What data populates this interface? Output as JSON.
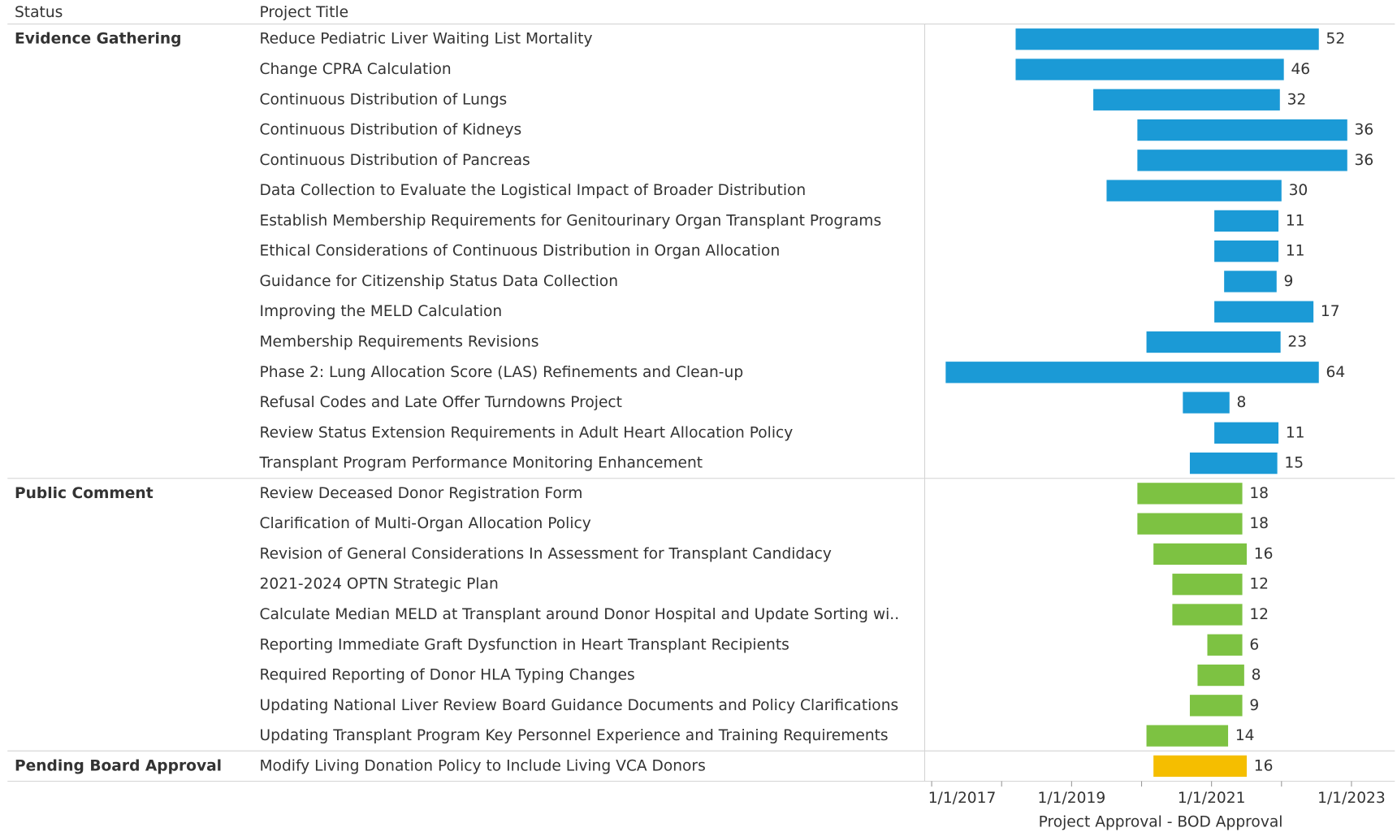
{
  "chart_data": {
    "type": "gantt",
    "columns": [
      "Status",
      "Project Title"
    ],
    "x_label": "Project Approval - BOD Approval",
    "xlim": [
      2016.9,
      2023.62
    ],
    "xticks": [
      {
        "value": 2017,
        "label": "1/1/2017"
      },
      {
        "value": 2019,
        "label": "1/1/2019"
      },
      {
        "value": 2021,
        "label": "1/1/2021"
      },
      {
        "value": 2023,
        "label": "1/1/2023"
      }
    ],
    "minor_xticks": [
      2018,
      2020,
      2022
    ],
    "groups": [
      {
        "name": "Evidence Gathering",
        "color": "#1b9ad6",
        "rows": [
          {
            "title": "Reduce Pediatric Liver Waiting List Mortality",
            "start": 2018.2,
            "value": 52
          },
          {
            "title": "Change CPRA Calculation",
            "start": 2018.2,
            "value": 46
          },
          {
            "title": "Continuous Distribution of Lungs",
            "start": 2019.31,
            "value": 32
          },
          {
            "title": "Continuous Distribution of Kidneys",
            "start": 2019.94,
            "value": 36
          },
          {
            "title": "Continuous Distribution of Pancreas",
            "start": 2019.94,
            "value": 36
          },
          {
            "title": "Data Collection to Evaluate the Logistical Impact of Broader Distribution",
            "start": 2019.5,
            "value": 30
          },
          {
            "title": "Establish Membership Requirements for Genitourinary Organ Transplant Programs",
            "start": 2021.04,
            "value": 11
          },
          {
            "title": "Ethical Considerations of Continuous Distribution in Organ Allocation",
            "start": 2021.04,
            "value": 11
          },
          {
            "title": "Guidance for Citizenship Status Data Collection",
            "start": 2021.18,
            "value": 9
          },
          {
            "title": "Improving the MELD Calculation",
            "start": 2021.04,
            "value": 17
          },
          {
            "title": "Membership Requirements Revisions",
            "start": 2020.07,
            "value": 23
          },
          {
            "title": "Phase 2: Lung Allocation Score (LAS) Refinements and Clean-up",
            "start": 2017.2,
            "value": 64
          },
          {
            "title": "Refusal Codes and Late Offer Turndowns Project",
            "start": 2020.59,
            "value": 8
          },
          {
            "title": "Review Status Extension Requirements in Adult Heart Allocation Policy",
            "start": 2021.04,
            "value": 11
          },
          {
            "title": "Transplant Program Performance Monitoring Enhancement",
            "start": 2020.69,
            "value": 15
          }
        ]
      },
      {
        "name": "Public Comment",
        "color": "#7dc242",
        "rows": [
          {
            "title": "Review Deceased Donor Registration Form",
            "start": 2019.94,
            "value": 18
          },
          {
            "title": "Clarification of Multi-Organ Allocation Policy",
            "start": 2019.94,
            "value": 18
          },
          {
            "title": "Revision of General Considerations In Assessment for Transplant Candidacy",
            "start": 2020.17,
            "value": 16
          },
          {
            "title": "2021-2024 OPTN Strategic Plan",
            "start": 2020.44,
            "value": 12
          },
          {
            "title": "Calculate Median MELD at Transplant around Donor Hospital and Update Sorting wi..",
            "start": 2020.44,
            "value": 12
          },
          {
            "title": "Reporting Immediate Graft Dysfunction in Heart Transplant Recipients",
            "start": 2020.94,
            "value": 6
          },
          {
            "title": "Required Reporting of Donor HLA Typing Changes",
            "start": 2020.8,
            "value": 8
          },
          {
            "title": "Updating National Liver Review Board Guidance Documents and Policy Clarifications",
            "start": 2020.69,
            "value": 9
          },
          {
            "title": "Updating Transplant Program Key Personnel Experience and Training Requirements",
            "start": 2020.07,
            "value": 14
          }
        ]
      },
      {
        "name": "Pending Board Approval",
        "color": "#f5be00",
        "rows": [
          {
            "title": "Modify Living Donation Policy to Include Living VCA Donors",
            "start": 2020.17,
            "value": 16
          }
        ]
      }
    ]
  }
}
